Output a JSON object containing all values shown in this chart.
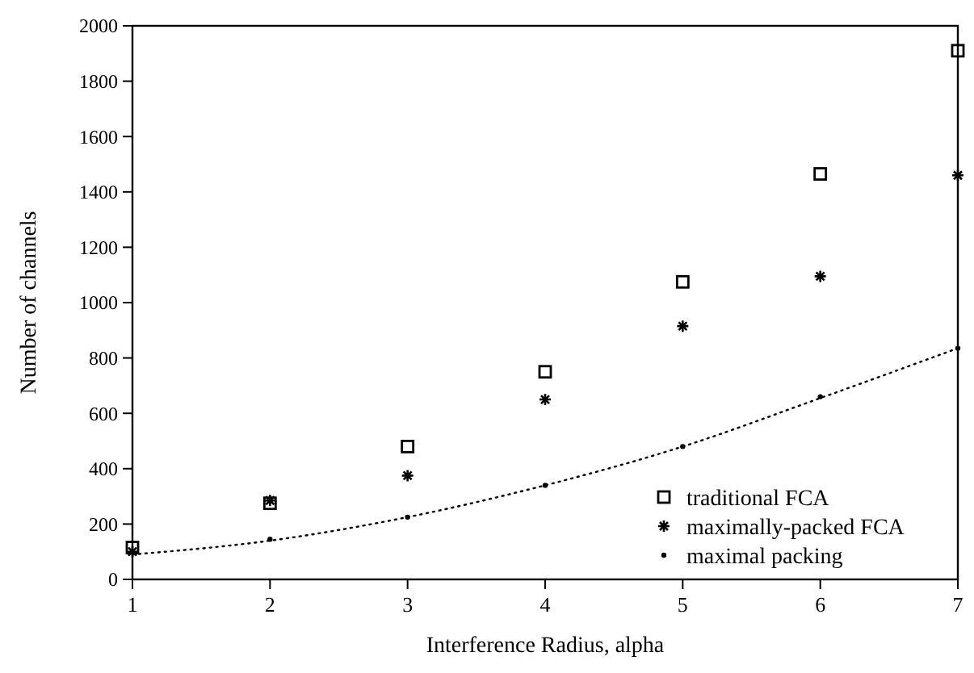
{
  "chart_data": {
    "type": "scatter",
    "xlabel": "Interference Radius, alpha",
    "ylabel": "Number of channels",
    "x": [
      1,
      2,
      3,
      4,
      5,
      6,
      7
    ],
    "xlim": [
      1,
      7
    ],
    "xticks": [
      1,
      2,
      3,
      4,
      5,
      6,
      7
    ],
    "ylim": [
      0,
      2000
    ],
    "yticks": [
      0,
      200,
      400,
      600,
      800,
      1000,
      1200,
      1400,
      1600,
      1800,
      2000
    ],
    "legend": "bottom right",
    "grid": false,
    "series": [
      {
        "name": "traditional FCA",
        "color": "#000000",
        "marker": "square",
        "values": [
          115,
          275,
          480,
          750,
          1075,
          1465,
          1910
        ]
      },
      {
        "name": "maximally-packed FCA",
        "color": "#000000",
        "marker": "cross",
        "values": [
          100,
          285,
          375,
          650,
          915,
          1095,
          1460
        ]
      },
      {
        "name": "maximal packing",
        "color": "#000000",
        "marker": "circle",
        "values": [
          null,
          145,
          225,
          340,
          480,
          660,
          835
        ]
      },
      {
        "type": "line",
        "color": "#000000",
        "line_style": "dotted",
        "marker": "none",
        "x": [
          1,
          2,
          3,
          4,
          5,
          6,
          7
        ],
        "values": [
          90,
          140,
          225,
          340,
          480,
          655,
          835
        ]
      }
    ]
  }
}
